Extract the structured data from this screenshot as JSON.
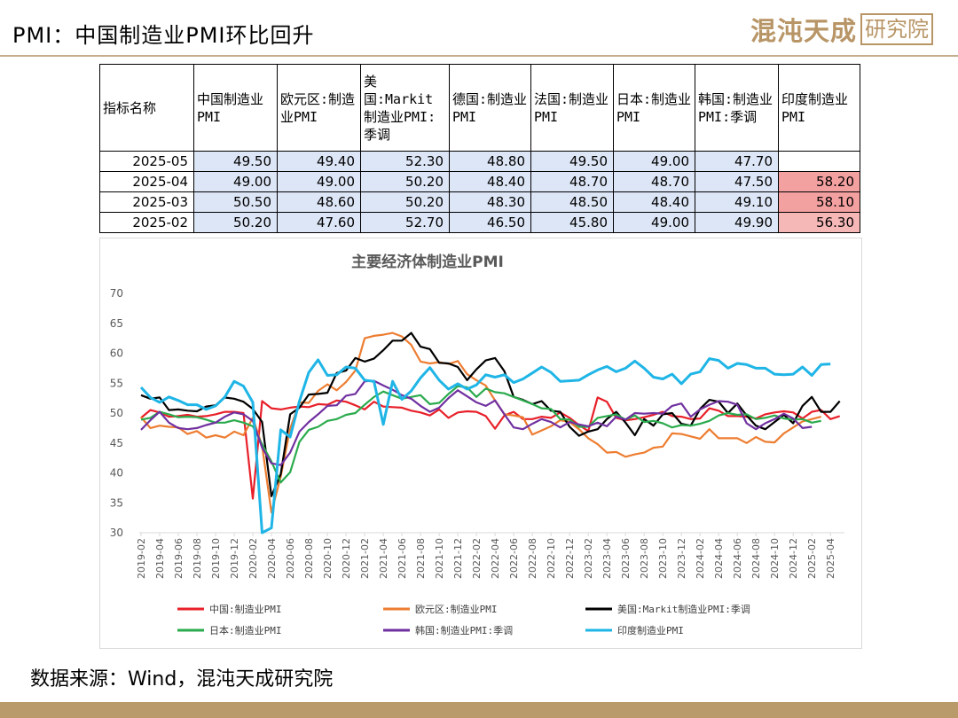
{
  "header": {
    "title": "PMI：中国制造业PMI环比回升"
  },
  "logo": {
    "name": "混沌天成",
    "box": "研究院"
  },
  "table": {
    "columns": [
      "指标名称",
      "中国制造业PMI",
      "欧元区:制造业PMI",
      "美国:Markit制造业PMI:季调",
      "德国:制造业PMI",
      "法国:制造业PMI",
      "日本:制造业PMI",
      "韩国:制造业PMI:季调",
      "印度制造业PMI"
    ],
    "rows": [
      {
        "date": "2025-05",
        "values": [
          "49.50",
          "49.40",
          "52.30",
          "48.80",
          "49.50",
          "49.00",
          "47.70",
          ""
        ]
      },
      {
        "date": "2025-04",
        "values": [
          "49.00",
          "49.00",
          "50.20",
          "48.40",
          "48.70",
          "48.70",
          "47.50",
          "58.20"
        ]
      },
      {
        "date": "2025-03",
        "values": [
          "50.50",
          "48.60",
          "50.20",
          "48.30",
          "48.50",
          "48.40",
          "49.10",
          "58.10"
        ]
      },
      {
        "date": "2025-02",
        "values": [
          "50.20",
          "47.60",
          "52.70",
          "46.50",
          "45.80",
          "49.00",
          "49.90",
          "56.30"
        ]
      }
    ]
  },
  "chart_data": {
    "type": "line",
    "title": "主要经济体制造业PMI",
    "xlabel": "",
    "ylabel": "",
    "ylim": [
      30,
      70
    ],
    "yticks": [
      30,
      35,
      40,
      45,
      50,
      55,
      60,
      65,
      70
    ],
    "grid": false,
    "legend_position": "bottom",
    "x_start": "2019-02",
    "x_tick_labels": [
      "2019-02",
      "2019-04",
      "2019-06",
      "2019-08",
      "2019-10",
      "2019-12",
      "2020-02",
      "2020-04",
      "2020-06",
      "2020-08",
      "2020-10",
      "2020-12",
      "2021-02",
      "2021-04",
      "2021-06",
      "2021-08",
      "2021-10",
      "2021-12",
      "2022-02",
      "2022-04",
      "2022-06",
      "2022-08",
      "2022-10",
      "2022-12",
      "2023-02",
      "2023-04",
      "2023-06",
      "2023-08",
      "2023-10",
      "2023-12",
      "2024-02",
      "2024-04",
      "2024-06",
      "2024-08",
      "2024-10",
      "2024-12",
      "2025-02",
      "2025-04"
    ],
    "series": [
      {
        "name": "中国:制造业PMI",
        "color": "#e8202a",
        "values": [
          49.2,
          50.5,
          50.1,
          49.4,
          49.5,
          49.7,
          49.4,
          49.5,
          49.8,
          50.2,
          50.2,
          50.0,
          35.7,
          52.0,
          50.8,
          50.6,
          50.9,
          51.1,
          51.0,
          51.5,
          51.4,
          52.1,
          51.9,
          51.3,
          50.6,
          51.9,
          51.1,
          51.0,
          50.9,
          50.4,
          50.1,
          49.6,
          50.6,
          49.2,
          50.1,
          50.3,
          50.2,
          49.5,
          47.4,
          49.6,
          50.2,
          49.0,
          49.0,
          49.4,
          49.2,
          50.1,
          49.2,
          48.0,
          47.0,
          52.6,
          51.9,
          49.2,
          48.8,
          49.0,
          49.3,
          49.7,
          50.2,
          49.5,
          49.4,
          49.0,
          49.1,
          50.8,
          50.4,
          49.5,
          49.5,
          49.4,
          49.1,
          49.8,
          50.1,
          50.3,
          50.1,
          49.1,
          50.2,
          50.5,
          49.0,
          49.5
        ]
      },
      {
        "name": "欧元区:制造业PMI",
        "color": "#ed7d31",
        "values": [
          49.3,
          47.5,
          47.9,
          47.7,
          47.6,
          46.5,
          47.0,
          45.9,
          46.3,
          45.9,
          46.9,
          46.3,
          49.2,
          44.5,
          33.4,
          39.4,
          47.4,
          51.8,
          51.7,
          53.7,
          54.8,
          53.8,
          55.2,
          57.1,
          62.5,
          62.9,
          63.1,
          63.4,
          62.8,
          61.4,
          58.6,
          58.3,
          58.5,
          58.2,
          58.7,
          56.5,
          55.5,
          54.6,
          52.1,
          49.8,
          49.6,
          49.3,
          46.4,
          47.1,
          47.8,
          48.8,
          48.5,
          47.3,
          45.8,
          44.8,
          43.4,
          43.5,
          42.7,
          43.1,
          43.4,
          44.2,
          44.4,
          46.6,
          46.5,
          46.1,
          45.7,
          47.3,
          45.8,
          45.8,
          45.8,
          45.0,
          46.0,
          45.2,
          45.1,
          46.6,
          47.6,
          48.6,
          49.0,
          49.4
        ]
      },
      {
        "name": "美国:Markit制造业PMI:季调",
        "color": "#000000",
        "values": [
          53.0,
          52.4,
          52.6,
          50.5,
          50.6,
          50.4,
          50.3,
          51.1,
          51.3,
          52.6,
          52.4,
          51.9,
          50.7,
          48.5,
          36.1,
          39.8,
          49.8,
          50.9,
          53.1,
          53.2,
          53.4,
          56.7,
          57.1,
          59.2,
          58.6,
          59.1,
          60.5,
          62.1,
          62.1,
          63.4,
          61.1,
          60.7,
          58.4,
          58.3,
          57.7,
          55.5,
          57.3,
          58.8,
          59.2,
          57.0,
          52.7,
          52.2,
          51.5,
          52.0,
          50.4,
          50.2,
          47.7,
          46.2,
          46.9,
          47.3,
          49.0,
          50.2,
          48.4,
          46.3,
          49.0,
          47.9,
          49.8,
          50.0,
          48.2,
          47.9,
          50.7,
          52.2,
          51.9,
          50.0,
          51.6,
          49.6,
          47.9,
          47.3,
          48.5,
          49.7,
          48.3,
          51.2,
          52.7,
          50.2,
          50.2,
          52.0
        ]
      },
      {
        "name": "日本:制造业PMI",
        "color": "#2bab4d",
        "values": [
          48.9,
          49.2,
          50.2,
          49.8,
          49.3,
          49.4,
          49.3,
          48.9,
          48.4,
          48.4,
          48.8,
          48.4,
          47.8,
          44.8,
          41.9,
          38.4,
          40.1,
          45.2,
          47.2,
          47.7,
          48.7,
          49.0,
          49.7,
          50.0,
          51.4,
          52.7,
          53.6,
          53.0,
          52.4,
          52.7,
          53.0,
          51.5,
          51.7,
          53.2,
          54.5,
          54.3,
          52.7,
          54.1,
          53.5,
          53.3,
          52.7,
          52.1,
          51.5,
          50.8,
          50.7,
          49.0,
          48.9,
          47.7,
          47.7,
          49.2,
          49.5,
          49.8,
          48.9,
          49.6,
          48.5,
          48.7,
          48.3,
          47.6,
          48.0,
          47.9,
          48.2,
          48.7,
          49.6,
          50.0,
          49.7,
          49.8,
          49.0,
          49.2,
          49.6,
          49.1,
          48.9,
          49.0,
          48.4,
          48.7
        ]
      },
      {
        "name": "韩国:制造业PMI:季调",
        "color": "#7030a0",
        "values": [
          47.2,
          48.8,
          50.2,
          48.4,
          47.5,
          47.3,
          47.5,
          48.0,
          48.4,
          49.4,
          50.1,
          49.8,
          48.7,
          44.2,
          41.6,
          41.3,
          43.4,
          46.9,
          48.5,
          49.8,
          51.2,
          51.3,
          52.9,
          53.2,
          55.3,
          55.4,
          54.6,
          53.9,
          53.0,
          52.4,
          51.2,
          50.2,
          50.9,
          52.5,
          53.8,
          52.8,
          51.8,
          51.2,
          52.1,
          49.8,
          47.6,
          47.3,
          48.2,
          49.0,
          48.5,
          47.6,
          48.5,
          48.1,
          47.8,
          48.4,
          47.8,
          49.4,
          48.9,
          50.0,
          49.9,
          50.0,
          49.9,
          51.2,
          51.6,
          49.4,
          50.6,
          51.4,
          52.0,
          51.9,
          51.4,
          48.3,
          47.3,
          48.3,
          49.0,
          49.9,
          49.1,
          47.5,
          47.7
        ]
      },
      {
        "name": "印度制造业PMI",
        "color": "#1fb5e6",
        "values": [
          54.3,
          52.6,
          51.8,
          52.7,
          52.1,
          51.4,
          51.4,
          50.6,
          51.2,
          52.7,
          55.3,
          54.5,
          51.8,
          27.4,
          30.8,
          47.2,
          46.0,
          52.0,
          56.8,
          58.9,
          56.3,
          56.4,
          57.7,
          57.5,
          55.5,
          55.3,
          48.1,
          55.3,
          52.3,
          53.7,
          55.9,
          57.6,
          55.5,
          54.0,
          54.9,
          54.0,
          54.7,
          56.4,
          56.0,
          56.4,
          55.1,
          55.7,
          56.7,
          57.7,
          56.8,
          55.3,
          55.4,
          55.5,
          56.4,
          57.2,
          57.8,
          56.9,
          57.5,
          58.7,
          57.5,
          56.0,
          55.7,
          56.5,
          54.9,
          56.5,
          56.9,
          59.1,
          58.8,
          57.5,
          58.3,
          58.1,
          57.5,
          57.5,
          56.5,
          56.4,
          56.5,
          57.7,
          56.3,
          58.1,
          58.2
        ]
      }
    ]
  },
  "source": {
    "text": "数据来源：Wind，混沌天成研究院"
  }
}
